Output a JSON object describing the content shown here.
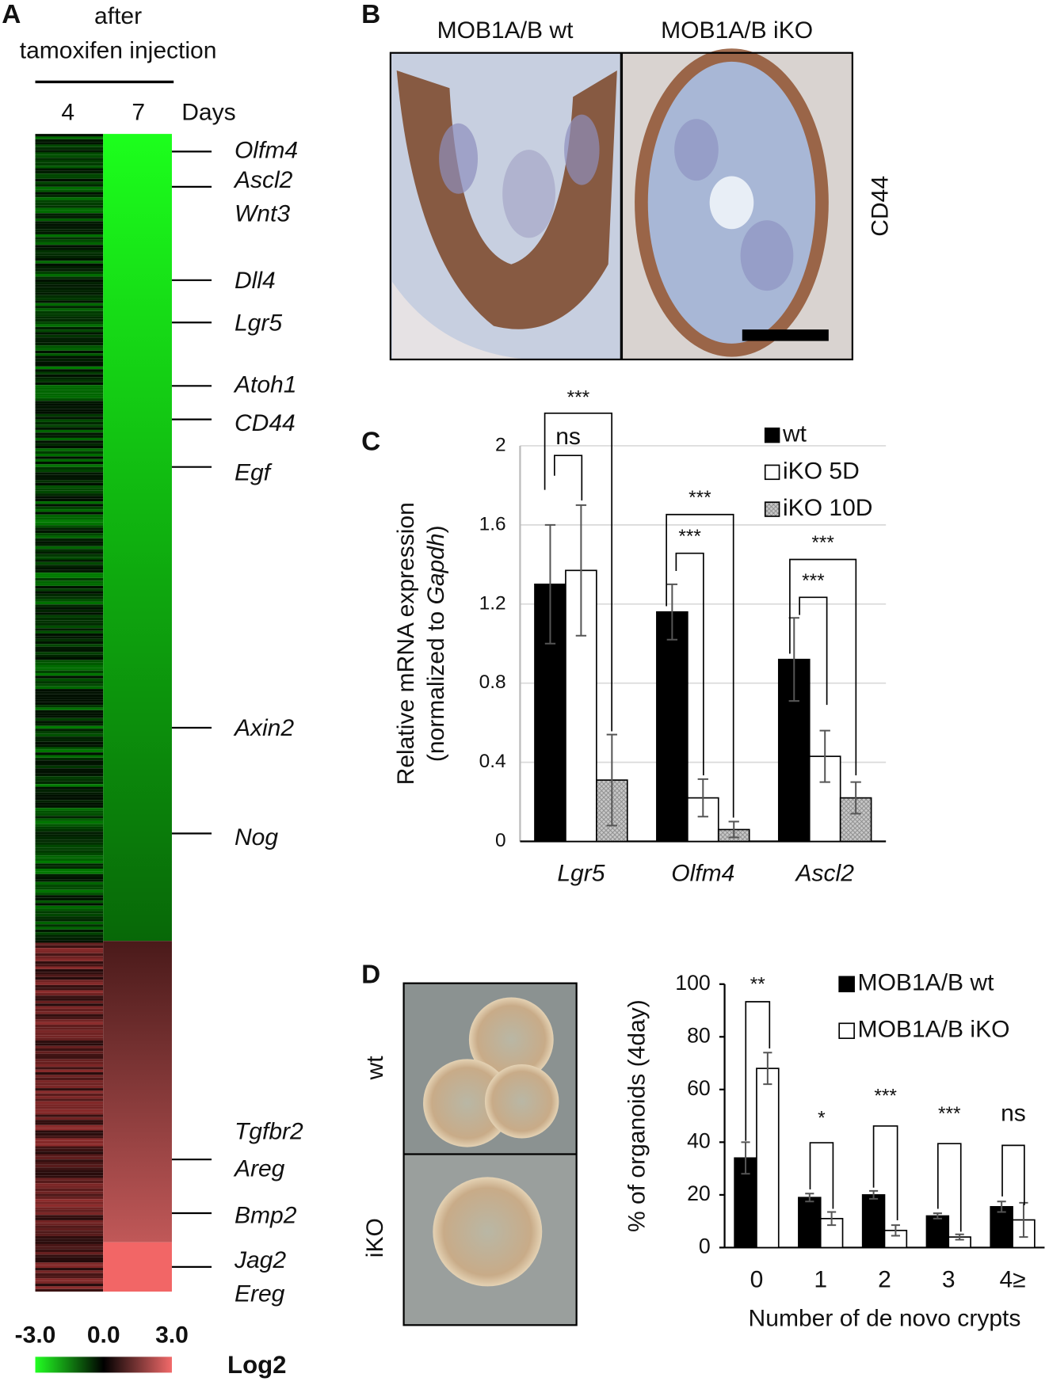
{
  "panel_a": {
    "label": "A",
    "header": [
      "after",
      "tamoxifen injection"
    ],
    "columns": [
      "4",
      "7"
    ],
    "columns_unit": "Days",
    "genes": [
      "Olfm4",
      "Ascl2",
      "Wnt3",
      "Dll4",
      "Lgr5",
      "Atoh1",
      "CD44",
      "Egf",
      "Axin2",
      "Nog",
      "Tgfbr2",
      "Areg",
      "Bmp2",
      "Jag2",
      "Ereg"
    ],
    "colorbar": {
      "ticks": [
        {
          "value": -3,
          "label": "-3.0"
        },
        {
          "value": 0,
          "label": "0.0"
        },
        {
          "value": 3,
          "label": "3.0"
        }
      ],
      "label": "Log2"
    }
  },
  "panel_b": {
    "label": "B",
    "columns": [
      "MOB1A/B wt",
      "MOB1A/B iKO"
    ],
    "stain": "CD44"
  },
  "panel_c": {
    "label": "C"
  },
  "panel_d": {
    "label": "D",
    "rows": [
      "wt",
      "iKO"
    ]
  },
  "chart_data": [
    {
      "type": "bar",
      "ylabel": "Relative mRNA expression",
      "ylabel_note": [
        "(normalized to ",
        "Gapdh",
        ")"
      ],
      "categories": [
        "Lgr5",
        "Olfm4",
        "Ascl2"
      ],
      "series": [
        {
          "name": "wt",
          "color": "#000000",
          "values": [
            1.3,
            1.16,
            0.92
          ],
          "errors": [
            0.3,
            0.14,
            0.21
          ]
        },
        {
          "name": "iKO 5D",
          "color": "#ffffff",
          "values": [
            1.37,
            0.22,
            0.43
          ],
          "errors": [
            0.33,
            0.095,
            0.13
          ]
        },
        {
          "name": "iKO 10D",
          "color": "#c8c8c8",
          "hatch": true,
          "values": [
            0.31,
            0.06,
            0.22
          ],
          "errors": [
            0.23,
            0.04,
            0.08
          ]
        }
      ],
      "ylim": [
        0,
        2
      ],
      "yticks": [
        0,
        0.4,
        0.8,
        1.2,
        1.6,
        2
      ],
      "grid": true,
      "legend": "top-right",
      "annotations": [
        "***",
        "ns",
        "***",
        "***",
        "***",
        "***"
      ]
    },
    {
      "type": "bar",
      "ylabel": "% of organoids (4day)",
      "xlabel": "Number of de novo crypts",
      "categories": [
        "0",
        "1",
        "2",
        "3",
        "4≥"
      ],
      "series": [
        {
          "name": "MOB1A/B wt",
          "color": "#000000",
          "values": [
            34,
            19,
            20,
            12,
            15.5
          ],
          "errors": [
            6,
            1.5,
            1.5,
            1,
            2
          ]
        },
        {
          "name": "MOB1A/B iKO",
          "color": "#ffffff",
          "values": [
            68,
            11,
            6.5,
            4,
            10.5
          ],
          "errors": [
            6,
            2.5,
            2,
            1,
            6.5
          ]
        }
      ],
      "ylim": [
        0,
        100
      ],
      "yticks": [
        0,
        20,
        40,
        60,
        80,
        100
      ],
      "grid": false,
      "legend": "top-right",
      "annotations": [
        "**",
        "*",
        "***",
        "***",
        "ns"
      ]
    }
  ]
}
